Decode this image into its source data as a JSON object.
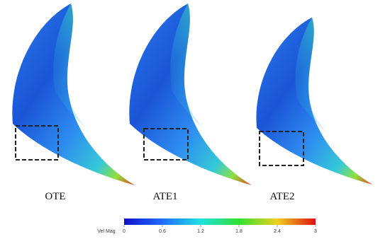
{
  "panels": [
    {
      "label": "OTE"
    },
    {
      "label": "ATE1"
    },
    {
      "label": "ATE2"
    }
  ],
  "colorbar": {
    "label": "Vel Mag",
    "lim": [
      0,
      3
    ],
    "ticks": [
      0,
      0.6,
      1.2,
      1.8,
      2.4,
      3
    ]
  }
}
